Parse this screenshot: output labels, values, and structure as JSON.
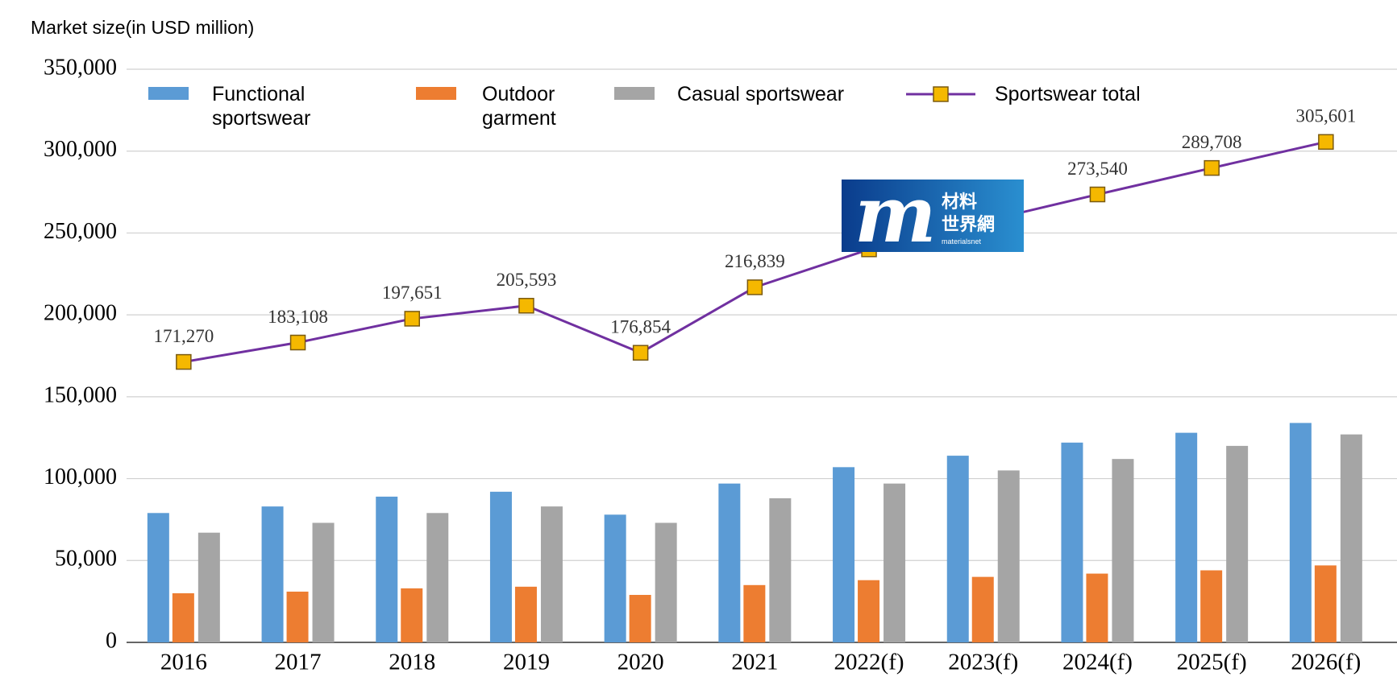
{
  "chart_data": {
    "type": "bar",
    "y_axis_label": "Market size(in USD million)",
    "categories": [
      "2016",
      "2017",
      "2018",
      "2019",
      "2020",
      "2021",
      "2022(f)",
      "2023(f)",
      "2024(f)",
      "2025(f)",
      "2026(f)"
    ],
    "series": [
      {
        "name": "Functional sportswear",
        "color": "#5b9bd5",
        "values": [
          79000,
          83000,
          89000,
          92000,
          78000,
          97000,
          107000,
          114000,
          122000,
          128000,
          134000
        ]
      },
      {
        "name": "Outdoor garment",
        "color": "#ed7d31",
        "values": [
          30000,
          31000,
          33000,
          34000,
          29000,
          35000,
          38000,
          40000,
          42000,
          44000,
          47000
        ]
      },
      {
        "name": "Casual sportswear",
        "color": "#a5a5a5",
        "values": [
          67000,
          73000,
          79000,
          83000,
          73000,
          88000,
          97000,
          105000,
          112000,
          120000,
          127000
        ]
      },
      {
        "name": "Sportswear total",
        "type": "line",
        "color": "#7030a0",
        "marker_color": "#f5b800",
        "values": [
          171270,
          183108,
          197651,
          205593,
          176854,
          216839,
          240000,
          257000,
          273540,
          289708,
          305601
        ],
        "value_labels": [
          "171,270",
          "183,108",
          "197,651",
          "205,593",
          "176,854",
          "216,839",
          null,
          null,
          "273,540",
          "289,708",
          "305,601"
        ]
      }
    ],
    "ylim": [
      0,
      350000
    ],
    "yticks": [
      0,
      {
        "value": 50000,
        "label": "50,000"
      },
      {
        "value": 100000,
        "label": "100,000"
      },
      {
        "value": 150000,
        "label": "150,000"
      },
      {
        "value": 200000,
        "label": "200,000"
      },
      {
        "value": 250000,
        "label": "250,000"
      },
      {
        "value": 300000,
        "label": "300,000"
      },
      {
        "value": 350000,
        "label": "350,000"
      }
    ],
    "grid": true,
    "legend": "top",
    "watermark": {
      "line1": "材料",
      "line2": "世界網",
      "line3": "materialsnet"
    }
  }
}
